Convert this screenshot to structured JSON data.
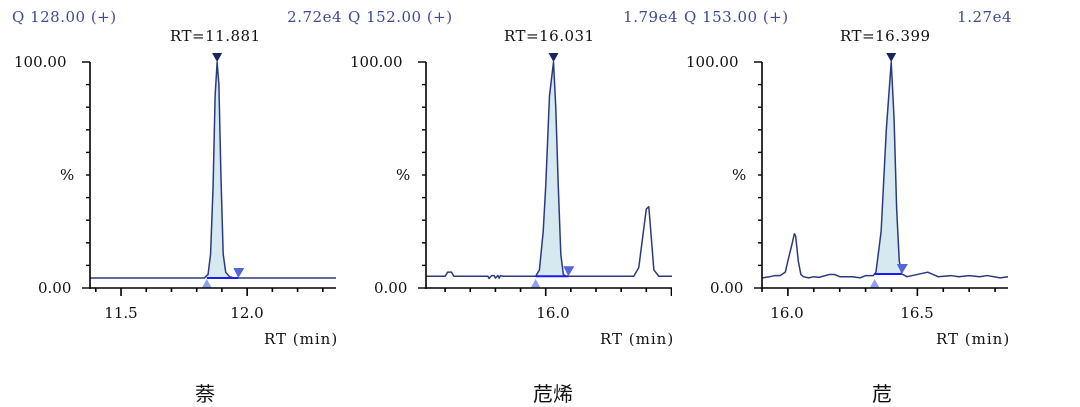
{
  "colors": {
    "trace": "#2b3a80",
    "fill": "#d6e9f0",
    "baseline": "#1a1aff",
    "marker": "#5566dd",
    "marker_start": "#8fa0f0",
    "header": "#3d4a96"
  },
  "chart_data": [
    {
      "type": "line",
      "header_left": "Q 128.00 (+)",
      "header_right": "2.72e4",
      "peak_label": "RT=11.881",
      "y_top_label": "100.00",
      "y_mid_label": "%",
      "y_bottom_label": "0.00",
      "xlabel": "RT (min)",
      "compound": "萘",
      "xlim": [
        11.377,
        12.38
      ],
      "ylim": [
        0,
        100
      ],
      "x_major_ticks": [
        11.5,
        12.0
      ],
      "x_tick_labels": [
        "11.5",
        "12.0"
      ],
      "x_minor_step": 0.1,
      "peak_rt": 11.881,
      "integration": {
        "start": 11.84,
        "end": 11.965,
        "baseline": 4.4
      },
      "series": [
        {
          "x": [
            11.377,
            11.83,
            11.845,
            11.855,
            11.865,
            11.873,
            11.881,
            11.888,
            11.896,
            11.905,
            11.915,
            11.93,
            11.95,
            12.38
          ],
          "y": [
            4.4,
            4.4,
            6,
            15,
            45,
            85,
            100,
            90,
            50,
            15,
            7,
            5,
            4.4,
            4.4
          ]
        }
      ]
    },
    {
      "type": "line",
      "header_left": "Q 152.00 (+)",
      "header_right": "1.79e4",
      "peak_label": "RT=16.031",
      "y_top_label": "100.00",
      "y_mid_label": "%",
      "y_bottom_label": "0.00",
      "xlabel": "RT (min)",
      "compound": "苊烯",
      "xlim": [
        15.524,
        16.53
      ],
      "ylim": [
        0,
        100
      ],
      "x_major_ticks": [
        16.0,
        16.5
      ],
      "x_tick_labels": [
        "16.0",
        ""
      ],
      "x_minor_step": 0.1,
      "peak_rt": 16.031,
      "integration": {
        "start": 15.96,
        "end": 16.09,
        "baseline": 5.2
      },
      "series": [
        {
          "x": [
            15.524,
            15.6,
            15.61,
            15.625,
            15.635,
            15.77,
            15.775,
            15.785,
            15.795,
            15.8,
            15.81,
            15.815,
            15.82,
            15.83,
            15.96,
            15.975,
            15.99,
            16.0,
            16.015,
            16.031,
            16.04,
            16.05,
            16.06,
            16.07,
            16.08,
            16.35,
            16.37,
            16.385,
            16.4,
            16.41,
            16.42,
            16.43,
            16.45,
            16.53
          ],
          "y": [
            5.2,
            5.2,
            7,
            7,
            5.2,
            5.2,
            4.2,
            5.5,
            5.5,
            4.4,
            5.5,
            4.4,
            5.5,
            5.2,
            5.2,
            8,
            25,
            45,
            85,
            100,
            80,
            45,
            15,
            6,
            5.2,
            5.2,
            9,
            22,
            35,
            36,
            22,
            8,
            5.2,
            5.2
          ]
        }
      ]
    },
    {
      "type": "line",
      "header_left": "Q 153.00 (+)",
      "header_right": "1.27e4",
      "peak_label": "RT=16.399",
      "y_top_label": "100.00",
      "y_mid_label": "%",
      "y_bottom_label": "0.00",
      "xlabel": "RT (min)",
      "compound": "苊",
      "xlim": [
        15.9,
        16.877
      ],
      "ylim": [
        0,
        100
      ],
      "x_major_ticks": [
        16.0,
        16.5
      ],
      "x_tick_labels": [
        "16.0",
        "16.5"
      ],
      "x_minor_step": 0.1,
      "peak_rt": 16.399,
      "integration": {
        "start": 16.335,
        "end": 16.44,
        "baseline": 6.2
      },
      "series": [
        {
          "x": [
            15.9,
            15.93,
            15.95,
            15.97,
            15.99,
            16.0,
            16.015,
            16.025,
            16.03,
            16.04,
            16.05,
            16.06,
            16.08,
            16.1,
            16.12,
            16.16,
            16.18,
            16.2,
            16.25,
            16.28,
            16.3,
            16.33,
            16.34,
            16.36,
            16.38,
            16.399,
            16.41,
            16.42,
            16.43,
            16.44,
            16.46,
            16.5,
            16.54,
            16.58,
            16.63,
            16.66,
            16.7,
            16.74,
            16.77,
            16.82,
            16.85,
            16.877
          ],
          "y": [
            4.5,
            5,
            5.5,
            5.5,
            7,
            12,
            19,
            24,
            23,
            12,
            6,
            5,
            4.5,
            5,
            4.7,
            6,
            6,
            5,
            5,
            4.5,
            5.5,
            5.5,
            7,
            25,
            70,
            100,
            75,
            35,
            12,
            6.2,
            5,
            6,
            7,
            5,
            5.5,
            5,
            5.5,
            5,
            5.5,
            4.5,
            5,
            5.5
          ]
        }
      ]
    }
  ]
}
